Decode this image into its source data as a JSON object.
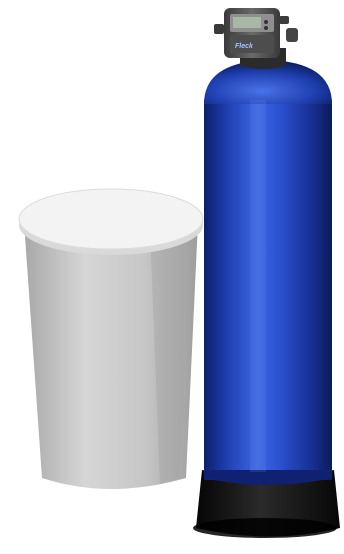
{
  "scene": {
    "subject": "water-softener-with-brine-tank",
    "control_head": {
      "logo_text": "Fleck"
    },
    "colors": {
      "background": "#ffffff",
      "pressure_vessel_blue": "#1f3fb0",
      "pressure_vessel_highlight": "#4a72e8",
      "vessel_base": "#111111",
      "brine_tank_body": "#c8c8c8",
      "brine_tank_lid": "#f3f3f3",
      "control_head_body": "#5a5a5a",
      "control_display": "#a9b7a6"
    }
  }
}
